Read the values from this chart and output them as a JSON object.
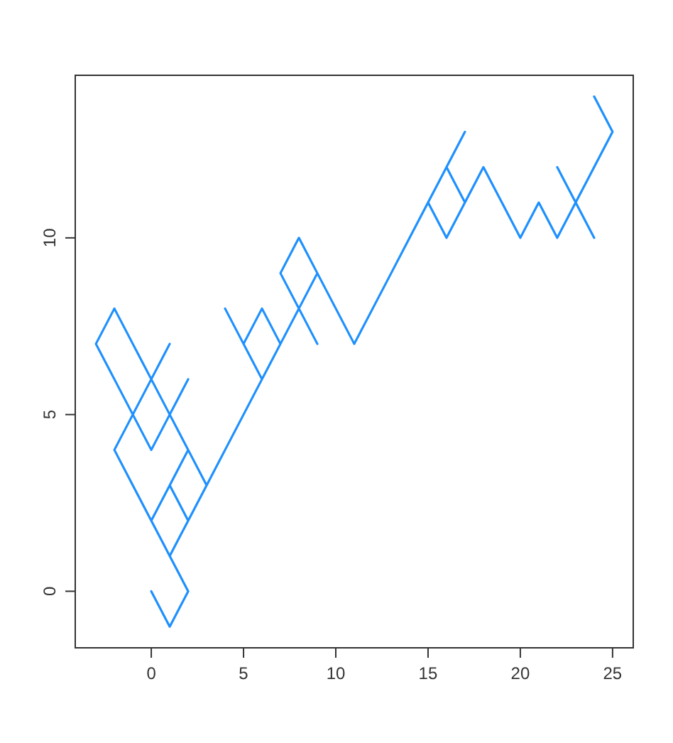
{
  "chart_data": {
    "type": "line",
    "x": [
      0,
      1,
      2,
      1,
      0,
      -1,
      -2,
      -1,
      0,
      1,
      0,
      -1,
      -2,
      -3,
      -2,
      -1,
      0,
      1,
      2,
      1,
      0,
      1,
      2,
      1,
      0,
      1,
      2,
      1,
      2,
      3,
      2,
      3,
      4,
      5,
      6,
      5,
      4,
      5,
      6,
      7,
      6,
      7,
      8,
      7,
      8,
      9,
      8,
      9,
      8,
      9,
      10,
      11,
      12,
      13,
      14,
      15,
      16,
      17,
      16,
      17,
      16,
      15,
      16,
      17,
      18,
      19,
      20,
      21,
      22,
      23,
      22,
      23,
      24,
      23,
      24,
      25,
      24
    ],
    "values": [
      0,
      -1,
      0,
      1,
      2,
      3,
      4,
      5,
      6,
      7,
      6,
      7,
      8,
      7,
      6,
      5,
      4,
      5,
      6,
      5,
      6,
      5,
      4,
      3,
      2,
      3,
      2,
      1,
      2,
      3,
      4,
      3,
      4,
      5,
      6,
      7,
      8,
      7,
      8,
      7,
      6,
      7,
      8,
      9,
      10,
      9,
      8,
      7,
      8,
      9,
      8,
      7,
      8,
      9,
      10,
      11,
      12,
      13,
      12,
      11,
      10,
      11,
      10,
      11,
      12,
      11,
      10,
      11,
      10,
      11,
      12,
      11,
      10,
      11,
      12,
      13,
      14
    ],
    "color": "#1e90ff",
    "xlim": [
      -4.12,
      26.12
    ],
    "ylim": [
      -1.6,
      14.6
    ],
    "xticks": [
      0,
      5,
      10,
      15,
      20,
      25
    ],
    "yticks": [
      0,
      5,
      10
    ],
    "grid": false,
    "marker": "none",
    "line_style": "solid"
  }
}
